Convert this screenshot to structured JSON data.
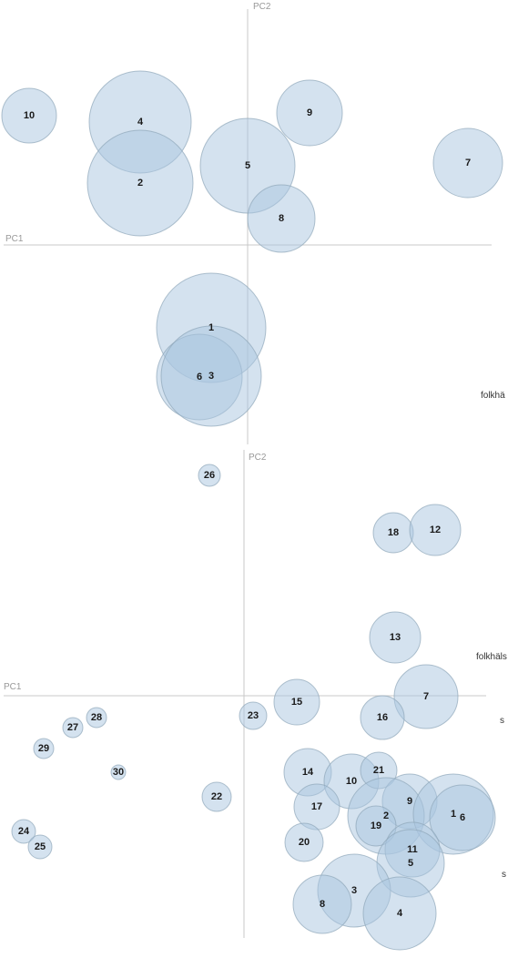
{
  "chart_data": [
    {
      "type": "scatter",
      "title": "",
      "xlabel": "PC1",
      "ylabel": "PC2",
      "side_labels": [
        "folkhä"
      ],
      "points": [
        {
          "label": "10",
          "x": -2.4,
          "y": 1.42,
          "size": 30
        },
        {
          "label": "4",
          "x": -1.18,
          "y": 1.35,
          "size": 56
        },
        {
          "label": "2",
          "x": -1.18,
          "y": 0.68,
          "size": 58
        },
        {
          "label": "9",
          "x": 0.68,
          "y": 1.45,
          "size": 36
        },
        {
          "label": "5",
          "x": 0.0,
          "y": 0.87,
          "size": 52
        },
        {
          "label": "7",
          "x": 2.42,
          "y": 0.9,
          "size": 38
        },
        {
          "label": "8",
          "x": 0.37,
          "y": 0.29,
          "size": 37
        },
        {
          "label": "1",
          "x": -0.4,
          "y": -0.91,
          "size": 60
        },
        {
          "label": "6",
          "x": -0.53,
          "y": -1.45,
          "size": 47
        },
        {
          "label": "3",
          "x": -0.4,
          "y": -1.44,
          "size": 55
        }
      ]
    },
    {
      "type": "scatter",
      "title": "",
      "xlabel": "PC1",
      "ylabel": "PC2",
      "side_labels": [
        "folkhäls",
        "s",
        "s"
      ],
      "points": [
        {
          "label": "26",
          "x": -0.38,
          "y": 2.42,
          "size": 12
        },
        {
          "label": "18",
          "x": 1.64,
          "y": 1.79,
          "size": 22
        },
        {
          "label": "12",
          "x": 2.1,
          "y": 1.82,
          "size": 28
        },
        {
          "label": "13",
          "x": 1.66,
          "y": 0.64,
          "size": 28
        },
        {
          "label": "7",
          "x": 2.0,
          "y": -0.01,
          "size": 35
        },
        {
          "label": "15",
          "x": 0.58,
          "y": -0.07,
          "size": 25
        },
        {
          "label": "23",
          "x": 0.1,
          "y": -0.22,
          "size": 15
        },
        {
          "label": "16",
          "x": 1.52,
          "y": -0.24,
          "size": 24
        },
        {
          "label": "27",
          "x": -1.88,
          "y": -0.35,
          "size": 11
        },
        {
          "label": "28",
          "x": -1.62,
          "y": -0.24,
          "size": 11
        },
        {
          "label": "29",
          "x": -2.2,
          "y": -0.58,
          "size": 11
        },
        {
          "label": "30",
          "x": -1.38,
          "y": -0.84,
          "size": 8
        },
        {
          "label": "14",
          "x": 0.7,
          "y": -0.84,
          "size": 26
        },
        {
          "label": "10",
          "x": 1.18,
          "y": -0.94,
          "size": 30
        },
        {
          "label": "21",
          "x": 1.48,
          "y": -0.82,
          "size": 20
        },
        {
          "label": "22",
          "x": -0.3,
          "y": -1.11,
          "size": 16
        },
        {
          "label": "17",
          "x": 0.8,
          "y": -1.22,
          "size": 25
        },
        {
          "label": "9",
          "x": 1.82,
          "y": -1.16,
          "size": 30
        },
        {
          "label": "2",
          "x": 1.56,
          "y": -1.32,
          "size": 42
        },
        {
          "label": "19",
          "x": 1.45,
          "y": -1.43,
          "size": 22
        },
        {
          "label": "1",
          "x": 2.3,
          "y": -1.3,
          "size": 44
        },
        {
          "label": "6",
          "x": 2.4,
          "y": -1.34,
          "size": 36
        },
        {
          "label": "24",
          "x": -2.42,
          "y": -1.49,
          "size": 13
        },
        {
          "label": "25",
          "x": -2.24,
          "y": -1.66,
          "size": 13
        },
        {
          "label": "20",
          "x": 0.66,
          "y": -1.61,
          "size": 21
        },
        {
          "label": "11",
          "x": 1.85,
          "y": -1.69,
          "size": 30
        },
        {
          "label": "5",
          "x": 1.83,
          "y": -1.84,
          "size": 37
        },
        {
          "label": "3",
          "x": 1.21,
          "y": -2.14,
          "size": 40
        },
        {
          "label": "8",
          "x": 0.86,
          "y": -2.29,
          "size": 32
        },
        {
          "label": "4",
          "x": 1.71,
          "y": -2.39,
          "size": 40
        }
      ]
    }
  ]
}
